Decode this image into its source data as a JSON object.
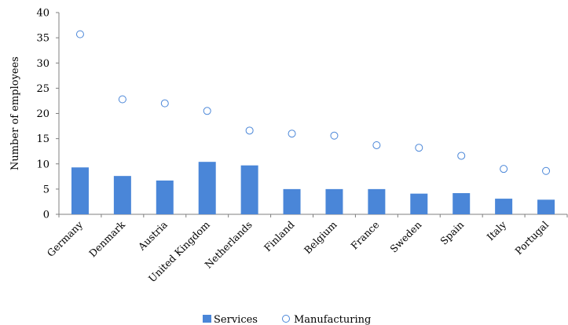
{
  "chart_data": {
    "type": "bar",
    "title": "",
    "xlabel": "",
    "ylabel": "Number of employees",
    "ylim": [
      0,
      40
    ],
    "yticks": [
      0,
      5,
      10,
      15,
      20,
      25,
      30,
      35,
      40
    ],
    "grid": false,
    "legend_position": "bottom",
    "categories": [
      "Germany",
      "Denmark",
      "Austria",
      "United Kingdom",
      "Netherlands",
      "Finland",
      "Belgium",
      "France",
      "Sweden",
      "Spain",
      "Italy",
      "Portugal"
    ],
    "series": [
      {
        "name": "Services",
        "kind": "bar",
        "color": "#4a86d8",
        "values": [
          9.3,
          7.6,
          6.7,
          10.4,
          9.7,
          5.0,
          5.0,
          5.0,
          4.1,
          4.2,
          3.1,
          2.9
        ]
      },
      {
        "name": "Manufacturing",
        "kind": "marker",
        "marker": "open-circle",
        "color": "#4a86d8",
        "values": [
          35.7,
          22.8,
          22.0,
          20.5,
          16.6,
          16.0,
          15.6,
          13.7,
          13.2,
          11.6,
          9.0,
          8.6
        ]
      }
    ]
  }
}
